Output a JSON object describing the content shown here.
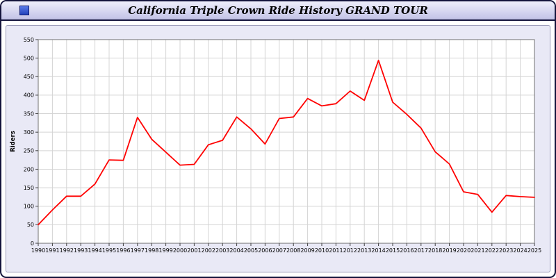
{
  "window": {
    "title": "California Triple Crown Ride History GRAND TOUR",
    "icon": "blue-square-window-icon"
  },
  "colors": {
    "line": "#ff0000",
    "grid": "#d4d4d4",
    "axis": "#707070",
    "tick": "#404040",
    "panel_bg": "#e9e9f6",
    "plot_bg": "#ffffff",
    "titlebar_top": "#efeffc",
    "titlebar_bottom": "#c2c2e6",
    "window_border": "#14143c"
  },
  "chart_data": {
    "type": "line",
    "title": "California Triple Crown Ride History GRAND TOUR",
    "xlabel": "",
    "ylabel": "Riders",
    "ylim": [
      0,
      550
    ],
    "yticks": [
      0,
      50,
      100,
      150,
      200,
      250,
      300,
      350,
      400,
      450,
      500,
      550
    ],
    "grid": true,
    "legend": "none",
    "categories": [
      "1990",
      "1991",
      "1992",
      "1993",
      "1994",
      "1995",
      "1996",
      "1997",
      "1998",
      "1999",
      "2000",
      "2001",
      "2002",
      "2003",
      "2004",
      "2005",
      "2006",
      "2007",
      "2008",
      "2009",
      "2010",
      "2011",
      "2012",
      "2013",
      "2014",
      "2015",
      "2016",
      "2017",
      "2018",
      "2019",
      "2020",
      "2021",
      "2022",
      "2023",
      "2024",
      "2025"
    ],
    "series": [
      {
        "name": "Riders",
        "values": [
          50,
          90,
          127,
          127,
          160,
          225,
          224,
          340,
          281,
          246,
          211,
          213,
          266,
          278,
          341,
          309,
          268,
          337,
          341,
          391,
          371,
          377,
          411,
          386,
          494,
          381,
          348,
          311,
          247,
          214,
          139,
          132,
          84,
          129,
          126,
          124
        ]
      }
    ]
  }
}
